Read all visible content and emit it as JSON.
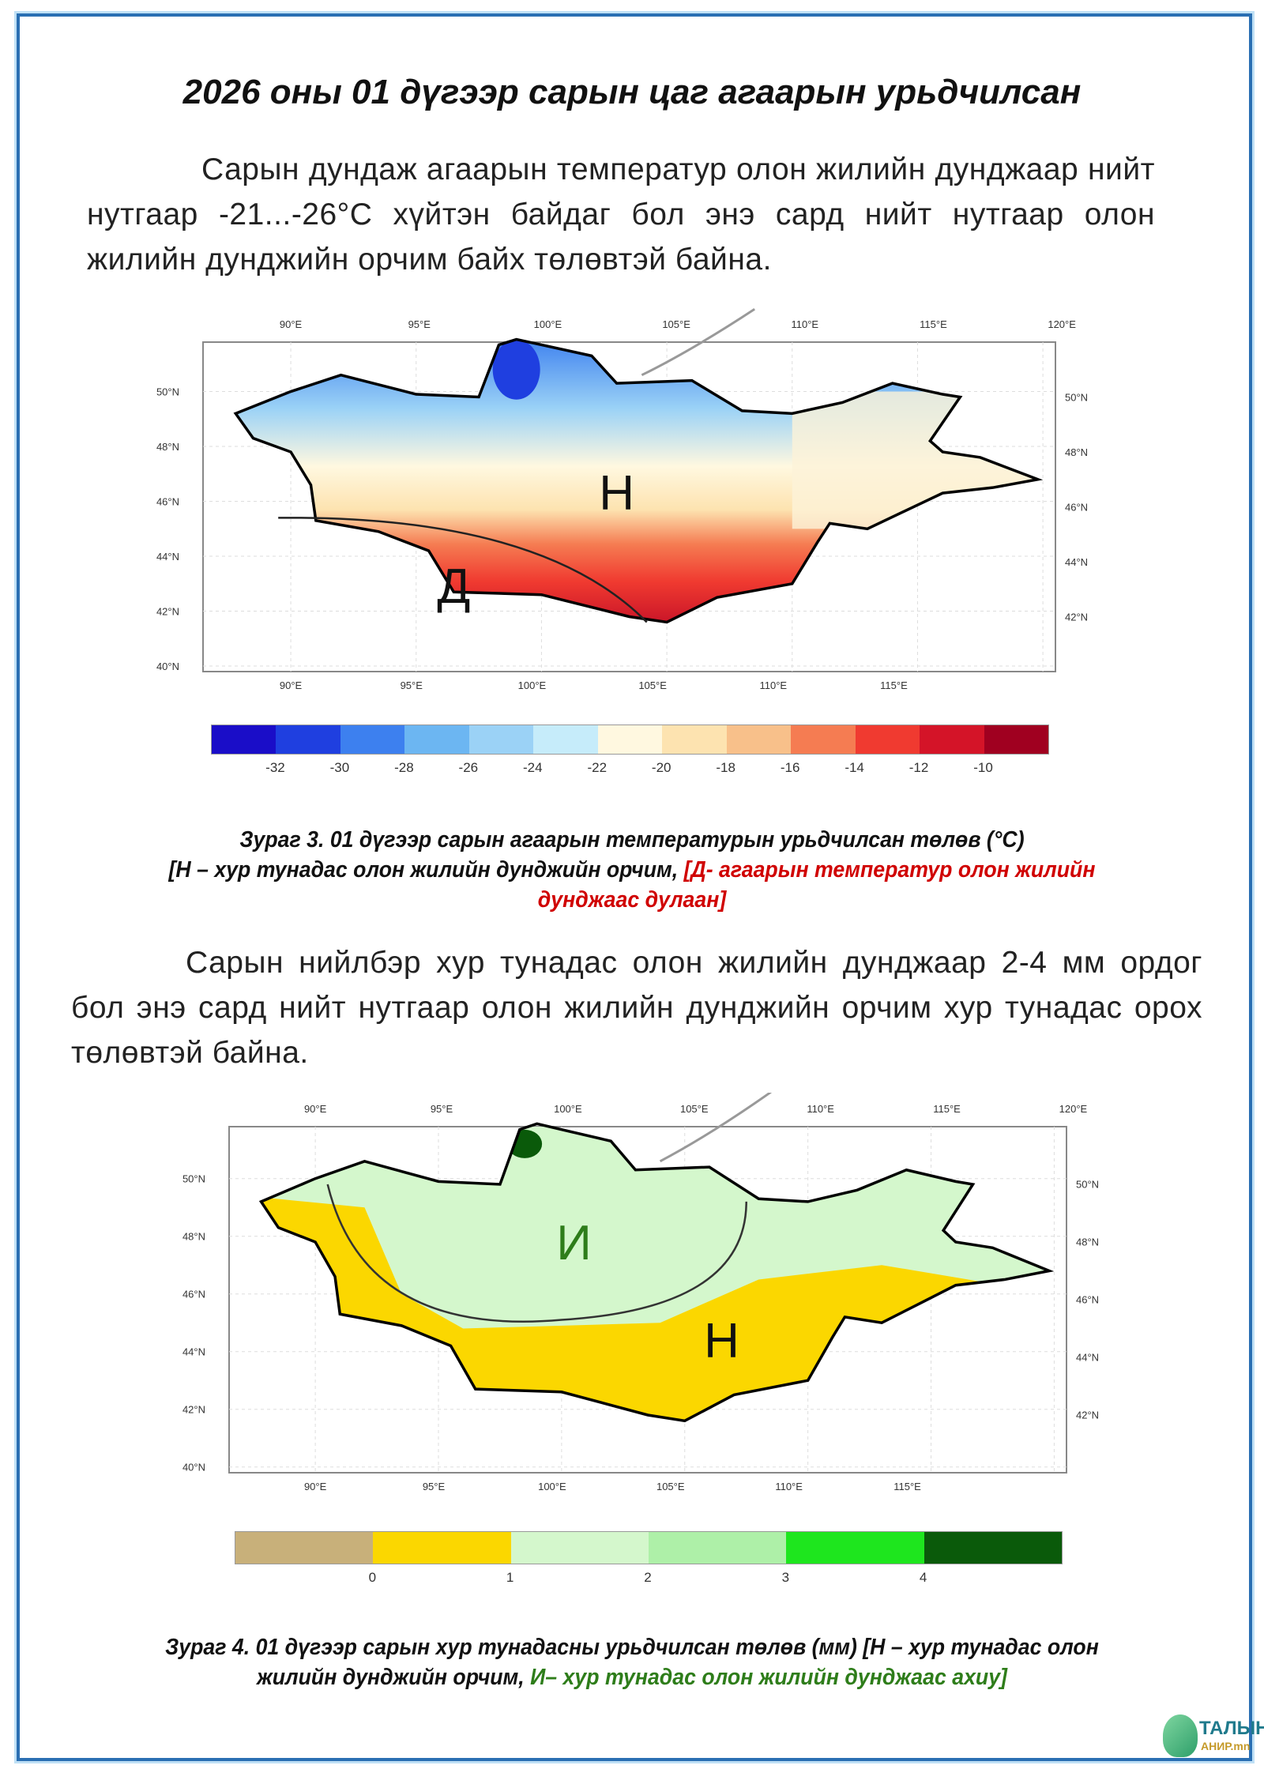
{
  "title": "2026 оны 01 дүгээр сарын цаг агаарын урьдчилсан",
  "paragraph1": "Сарын дундаж агаарын температур олон жилийн дунджаар нийт нутгаар -21...-26°С хүйтэн байдаг бол энэ сард нийт нутгаар олон жилийн дунджийн орчим байх төлөвтэй байна.",
  "paragraph2": "Сарын нийлбэр хур тунадас олон жилийн дунджаар  2-4 мм ордог бол энэ сард нийт нутгаар олон жилийн дунджийн орчим хур тунадас орох төлөвтэй байна.",
  "map_axes": {
    "top_lon": [
      "90°E",
      "95°E",
      "100°E",
      "105°E",
      "110°E",
      "115°E",
      "120°E"
    ],
    "bottom_lon": [
      "90°E",
      "95°E",
      "100°E",
      "105°E",
      "110°E",
      "115°E"
    ],
    "left_lat": [
      "40°N",
      "42°N",
      "44°N",
      "46°N",
      "48°N",
      "50°N"
    ],
    "right_lat": [
      "42°N",
      "44°N",
      "46°N",
      "48°N",
      "50°N"
    ]
  },
  "figure3": {
    "labels": {
      "normal": "Н",
      "warm": "Д"
    },
    "legend_colors": [
      "#1a0dc8",
      "#1f3fe0",
      "#3d80ef",
      "#6cb6f2",
      "#9bd2f6",
      "#c6ecfa",
      "#fff8e0",
      "#fde3b0",
      "#f8c08a",
      "#f57c52",
      "#f03a30",
      "#d41428",
      "#a00020"
    ],
    "legend_labels": [
      "-32",
      "-30",
      "-28",
      "-26",
      "-24",
      "-22",
      "-20",
      "-18",
      "-16",
      "-14",
      "-12",
      "-10"
    ],
    "caption_main": "Зураг 3. 01 дүгээр сарын агаарын температурын урьдчилсан төлөв (°С)",
    "caption_black": "[Н – хур тунадас олон жилийн дунджийн орчим, ",
    "caption_red": "[Д- агаарын температур олон жилийн дунджаас дулаан]"
  },
  "figure4": {
    "labels": {
      "more": "И",
      "normal": "Н"
    },
    "legend_colors": [
      "#c8b07a",
      "#fbd700",
      "#d4f7cc",
      "#aef0a8",
      "#1ee61e",
      "#0a5a0a"
    ],
    "legend_labels": [
      "0",
      "1",
      "2",
      "3",
      "4"
    ],
    "caption_black": "Зураг 4. 01 дүгээр сарын хур тунадасны урьдчилсан төлөв (мм) [Н – хур тунадас олон жилийн дунджийн орчим, ",
    "caption_green": "И– хур тунадас олон жилийн дунджаас ахиу]"
  },
  "logo": {
    "line1": "ТАЛЫН",
    "line2": "АНИР.mn"
  }
}
